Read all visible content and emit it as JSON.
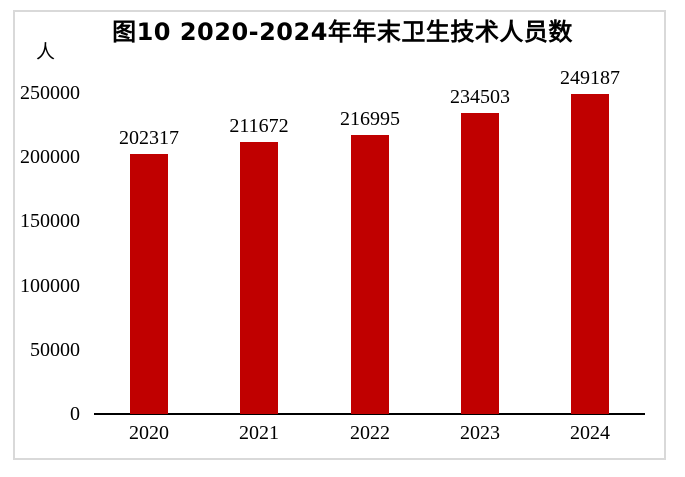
{
  "chart_data": {
    "type": "bar",
    "title": "图10 2020-2024年年末卫生技术人员数",
    "ylabel": "人",
    "xlabel": "",
    "categories": [
      "2020",
      "2021",
      "2022",
      "2023",
      "2024"
    ],
    "values": [
      202317,
      211672,
      216995,
      234503,
      249187
    ],
    "data_labels": [
      202317,
      211672,
      216995,
      234503,
      249187
    ],
    "ylim": [
      0,
      250000
    ],
    "yticks": [
      0,
      50000,
      100000,
      150000,
      200000,
      250000
    ],
    "grid": false,
    "legend_position": "none",
    "bar_color": "#c00000",
    "axis_color": "#000000",
    "frame_border_color": "#d9d9d9",
    "background_color": "#ffffff"
  }
}
